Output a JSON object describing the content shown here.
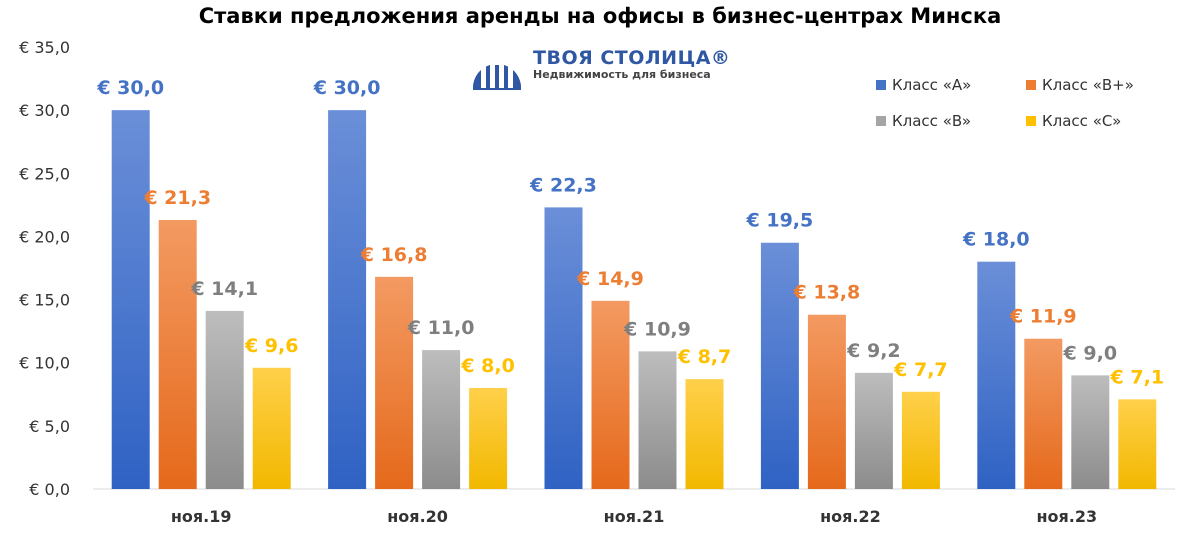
{
  "chart_data": {
    "type": "bar",
    "title": "Ставки предложения аренды на офисы в бизнес-центрах Минска",
    "categories": [
      "ноя.19",
      "ноя.20",
      "ноя.21",
      "ноя.22",
      "ноя.23"
    ],
    "series": [
      {
        "name": "Класс «A»",
        "color": "#4472C4",
        "values": [
          30.0,
          30.0,
          22.3,
          19.5,
          18.0
        ]
      },
      {
        "name": "Класс «B+»",
        "color": "#ED7D31",
        "values": [
          21.3,
          16.8,
          14.9,
          13.8,
          11.9
        ]
      },
      {
        "name": "Класс «B»",
        "color": "#A5A5A5",
        "values": [
          14.1,
          11.0,
          10.9,
          9.2,
          9.0
        ]
      },
      {
        "name": "Класс «C»",
        "color": "#FFC000",
        "values": [
          9.6,
          8.0,
          8.7,
          7.7,
          7.1
        ]
      }
    ],
    "data_labels": [
      [
        "€ 30,0",
        "€ 30,0",
        "€ 22,3",
        "€ 19,5",
        "€ 18,0"
      ],
      [
        "€ 21,3",
        "€ 16,8",
        "€ 14,9",
        "€ 13,8",
        "€ 11,9"
      ],
      [
        "€ 14,1",
        "€ 11,0",
        "€ 10,9",
        "€ 9,2",
        "€ 9,0"
      ],
      [
        "€ 9,6",
        "€ 8,0",
        "€ 8,7",
        "€ 7,7",
        "€ 7,1"
      ]
    ],
    "yticks": [
      0,
      5,
      10,
      15,
      20,
      25,
      30,
      35
    ],
    "ytick_labels": [
      "€ 0,0",
      "€ 5,0",
      "€ 10,0",
      "€ 15,0",
      "€ 20,0",
      "€ 25,0",
      "€ 30,0",
      "€ 35,0"
    ],
    "ylim": [
      0,
      35
    ],
    "xlabel": "",
    "ylabel": "",
    "grid": false,
    "legend_position": "top-right"
  },
  "logo": {
    "name": "ТВОЯ СТОЛИЦА®",
    "tagline": "Недвижимость для бизнеса"
  }
}
